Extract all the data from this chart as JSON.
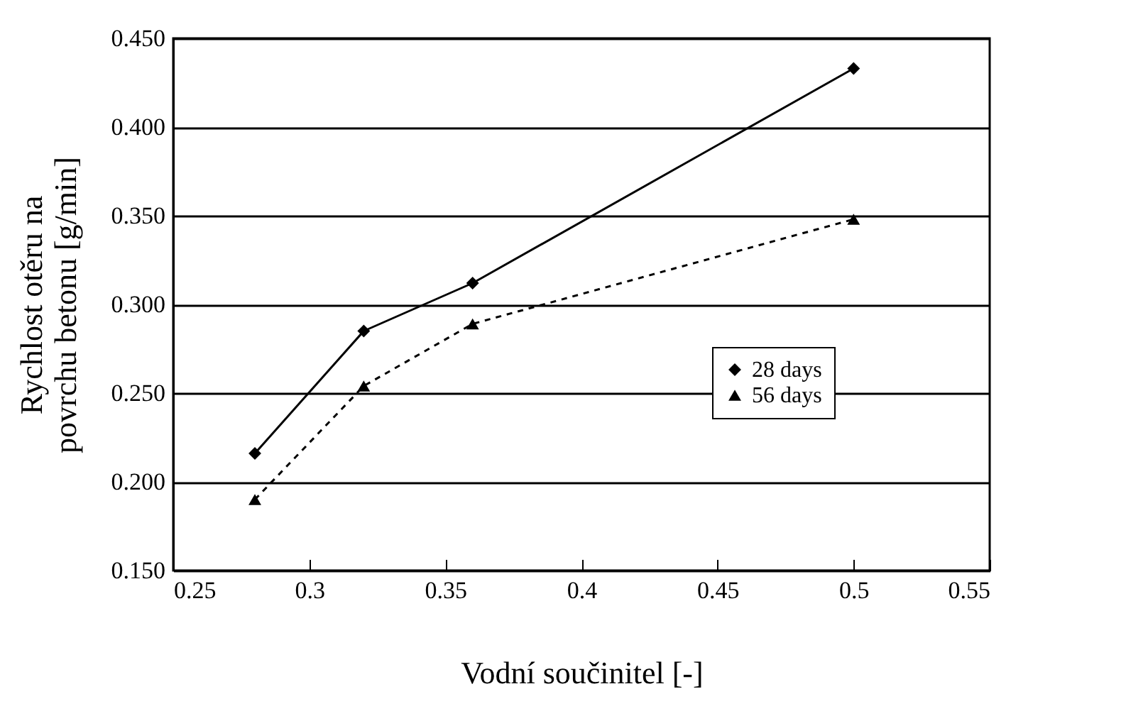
{
  "chart_data": {
    "type": "line",
    "xlabel": "Vodní součinitel [-]",
    "ylabel": "Rychlost otěru na povrchu betonu [g/min]",
    "x": [
      0.28,
      0.32,
      0.36,
      0.5
    ],
    "series": [
      {
        "name": "28 days",
        "color": "#000000",
        "values": [
          0.216,
          0.285,
          0.312,
          0.433
        ],
        "marker": "diamond",
        "line_style": "solid"
      },
      {
        "name": "56 days",
        "color": "#000000",
        "values": [
          0.19,
          0.254,
          0.289,
          0.348
        ],
        "marker": "triangle",
        "line_style": "dashed"
      }
    ],
    "xlim": [
      0.25,
      0.55
    ],
    "xticks": [
      0.25,
      0.3,
      0.35,
      0.4,
      0.45,
      0.5,
      0.55
    ],
    "ylim": [
      0.15,
      0.45
    ],
    "yticks": [
      {
        "value": 0.15,
        "label": "0.150"
      },
      {
        "value": 0.2,
        "label": "0.200"
      },
      {
        "value": 0.25,
        "label": "0.250"
      },
      {
        "value": 0.3,
        "label": "0.300"
      },
      {
        "value": 0.35,
        "label": "0.350"
      },
      {
        "value": 0.4,
        "label": "0.400"
      },
      {
        "value": 0.45,
        "label": "0.450"
      }
    ],
    "grid": "y",
    "legend": "right"
  }
}
